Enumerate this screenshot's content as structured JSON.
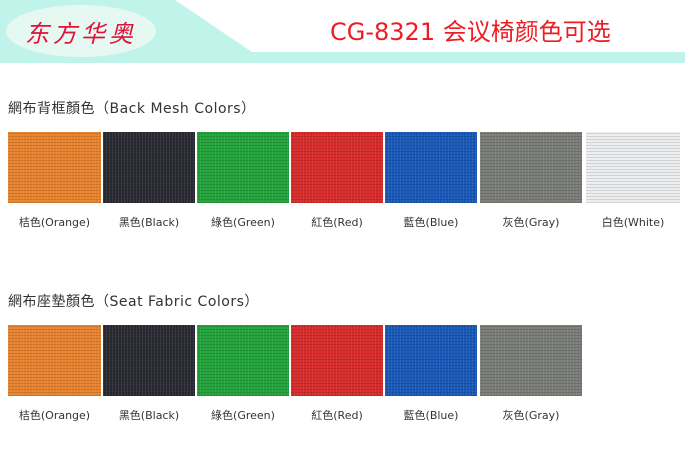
{
  "header": {
    "logo_text": "东方华奥",
    "title": "CG-8321 会议椅颜色可选",
    "band_color": "#c0f4ea",
    "title_color": "#ee1c24"
  },
  "back_mesh": {
    "title": "網布背框顏色（Back Mesh Colors）",
    "swatches": [
      {
        "label": "桔色(Orange)",
        "color": "#e8822e"
      },
      {
        "label": "黑色(Black)",
        "color": "#2a2a33"
      },
      {
        "label": "綠色(Green)",
        "color": "#21a33a"
      },
      {
        "label": "紅色(Red)",
        "color": "#d92a2a"
      },
      {
        "label": "藍色(Blue)",
        "color": "#1858b8"
      },
      {
        "label": "灰色(Gray)",
        "color": "#7a7c78"
      },
      {
        "label": "白色(White)",
        "color": "#eceef0"
      }
    ]
  },
  "seat_fabric": {
    "title": "網布座墊顏色（Seat Fabric Colors）",
    "swatches": [
      {
        "label": "桔色(Orange)",
        "color": "#e8822e"
      },
      {
        "label": "黑色(Black)",
        "color": "#2a2a33"
      },
      {
        "label": "綠色(Green)",
        "color": "#21a33a"
      },
      {
        "label": "紅色(Red)",
        "color": "#d92a2a"
      },
      {
        "label": "藍色(Blue)",
        "color": "#1858b8"
      },
      {
        "label": "灰色(Gray)",
        "color": "#7a7c78"
      }
    ]
  }
}
